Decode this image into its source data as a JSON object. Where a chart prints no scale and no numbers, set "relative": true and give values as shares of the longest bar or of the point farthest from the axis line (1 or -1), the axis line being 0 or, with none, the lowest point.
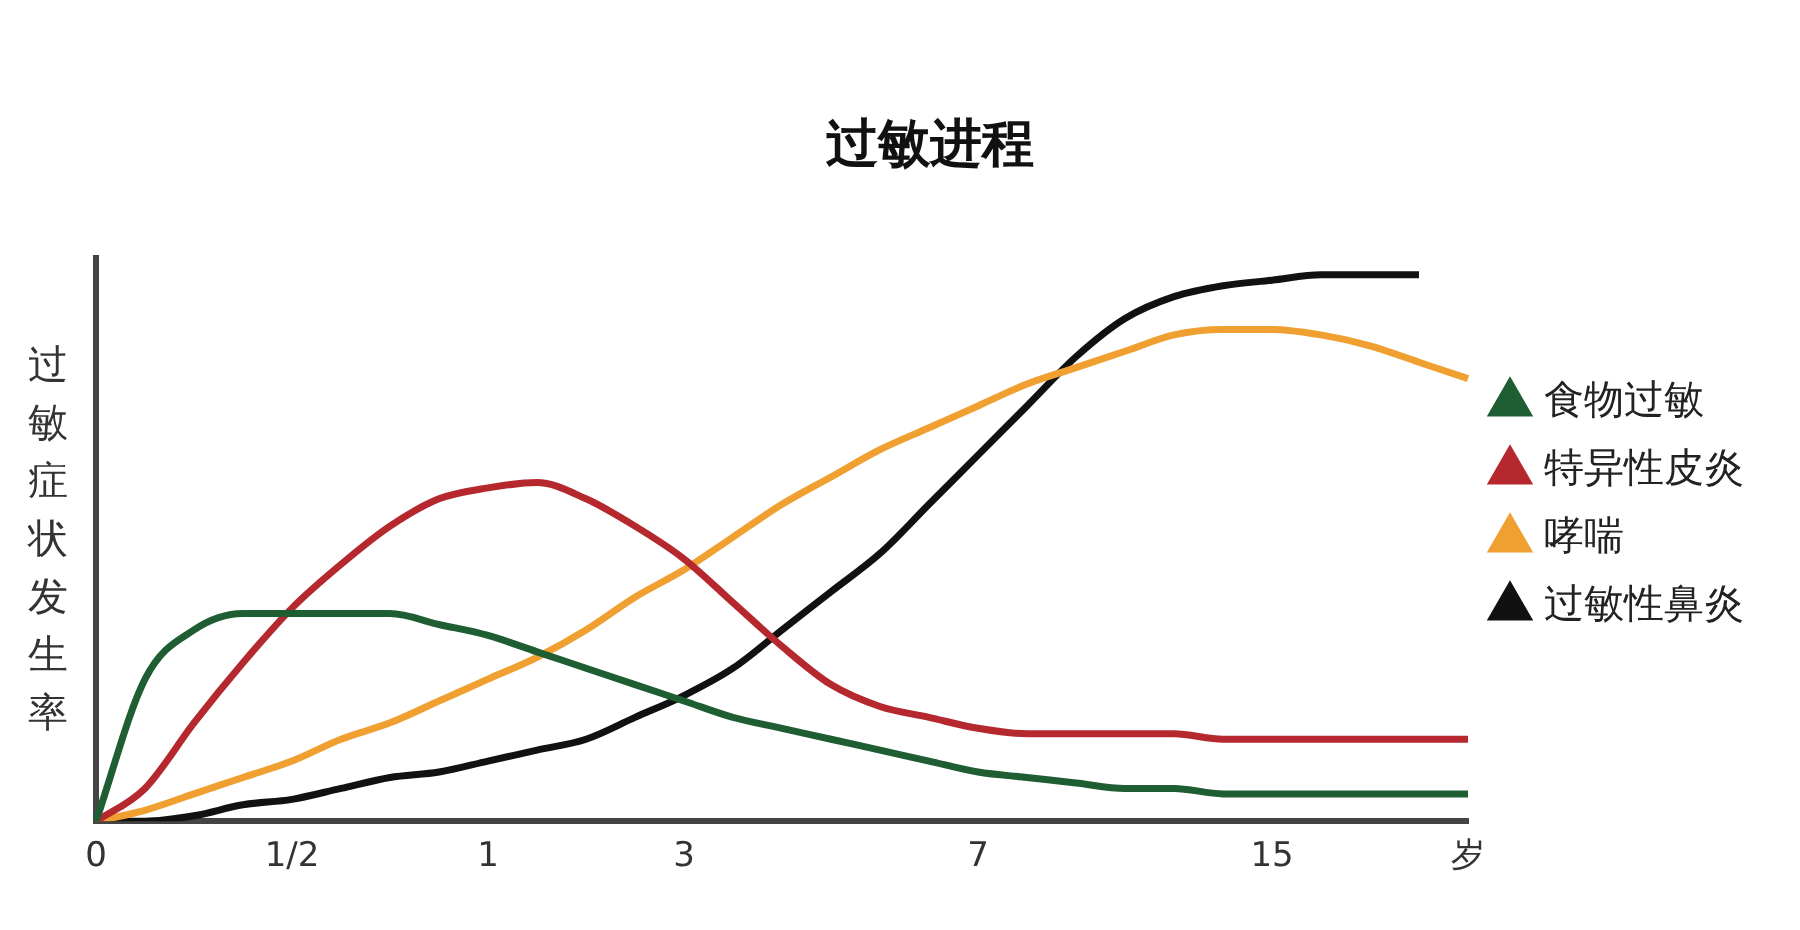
{
  "chart_data": {
    "type": "line",
    "title": "过敏进程",
    "ylabel": "过敏症状发生率",
    "relative": true,
    "grid": false,
    "legend": "right",
    "categories": [
      "0",
      null,
      null,
      null,
      "1/2",
      null,
      null,
      null,
      "1",
      null,
      null,
      null,
      "3",
      null,
      null,
      null,
      null,
      null,
      "7",
      null,
      null,
      null,
      null,
      null,
      "15",
      null,
      null,
      null,
      "岁"
    ],
    "series": [
      {
        "name": "食物过敏",
        "color": "#1e5e32",
        "values": [
          0,
          0.26,
          0.35,
          0.38,
          0.38,
          0.38,
          0.38,
          0.36,
          0.34,
          0.31,
          0.28,
          0.25,
          0.22,
          0.19,
          0.17,
          0.15,
          0.13,
          0.11,
          0.09,
          0.08,
          0.07,
          0.06,
          0.06,
          0.05,
          0.05,
          0.05,
          0.05,
          0.05,
          0.05
        ]
      },
      {
        "name": "特异性皮炎",
        "color": "#b5282e",
        "values": [
          0,
          0.06,
          0.18,
          0.29,
          0.39,
          0.47,
          0.54,
          0.59,
          0.61,
          0.62,
          0.59,
          0.54,
          0.48,
          0.4,
          0.32,
          0.25,
          0.21,
          0.19,
          0.17,
          0.16,
          0.16,
          0.16,
          0.16,
          0.15,
          0.15,
          0.15,
          0.15,
          0.15,
          0.15
        ]
      },
      {
        "name": "哮喘",
        "color": "#f0a030",
        "values": [
          0,
          0.02,
          0.05,
          0.08,
          0.11,
          0.15,
          0.18,
          0.22,
          0.26,
          0.3,
          0.35,
          0.41,
          0.46,
          0.52,
          0.58,
          0.63,
          0.68,
          0.72,
          0.76,
          0.8,
          0.83,
          0.86,
          0.89,
          0.9,
          0.9,
          0.89,
          0.87,
          0.84,
          0.81
        ]
      },
      {
        "name": "过敏性鼻炎",
        "color": "#111111",
        "values": [
          0,
          0,
          0.01,
          0.03,
          0.04,
          0.06,
          0.08,
          0.09,
          0.11,
          0.13,
          0.15,
          0.19,
          0.23,
          0.28,
          0.35,
          0.42,
          0.49,
          0.58,
          0.67,
          0.76,
          0.85,
          0.92,
          0.96,
          0.98,
          0.99,
          1,
          1,
          1,
          null
        ]
      }
    ]
  }
}
